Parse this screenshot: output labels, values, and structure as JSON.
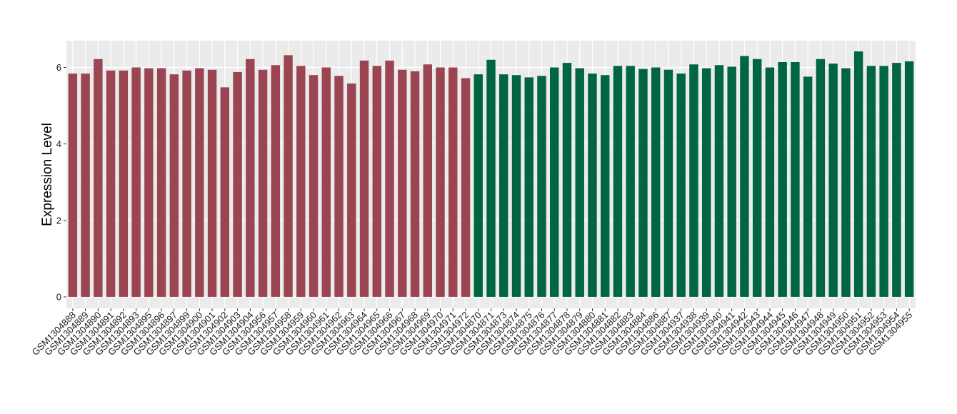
{
  "chart_data": {
    "type": "bar",
    "ylabel": "Expression Level",
    "xlabel": "",
    "ylim": [
      -0.3,
      6.7
    ],
    "yticks": [
      0,
      2,
      4,
      6
    ],
    "grid": true,
    "legend": "none",
    "colors": {
      "group1": "#9b4452",
      "group2": "#006641",
      "panel": "#ebebeb",
      "grid": "#ffffff"
    },
    "categories": [
      "GSM1304888",
      "GSM1304889",
      "GSM1304890",
      "GSM1304891",
      "GSM1304892",
      "GSM1304893",
      "GSM1304895",
      "GSM1304896",
      "GSM1304897",
      "GSM1304899",
      "GSM1304900",
      "GSM1304901",
      "GSM1304902",
      "GSM1304903",
      "GSM1304904",
      "GSM1304956",
      "GSM1304957",
      "GSM1304958",
      "GSM1304959",
      "GSM1304960",
      "GSM1304961",
      "GSM1304962",
      "GSM1304963",
      "GSM1304964",
      "GSM1304965",
      "GSM1304966",
      "GSM1304967",
      "GSM1304968",
      "GSM1304969",
      "GSM1304970",
      "GSM1304971",
      "GSM1304972",
      "GSM1304870",
      "GSM1304871",
      "GSM1304873",
      "GSM1304874",
      "GSM1304875",
      "GSM1304876",
      "GSM1304877",
      "GSM1304878",
      "GSM1304879",
      "GSM1304880",
      "GSM1304881",
      "GSM1304882",
      "GSM1304883",
      "GSM1304884",
      "GSM1304886",
      "GSM1304887",
      "GSM1304937",
      "GSM1304938",
      "GSM1304939",
      "GSM1304940",
      "GSM1304941",
      "GSM1304942",
      "GSM1304943",
      "GSM1304944",
      "GSM1304945",
      "GSM1304946",
      "GSM1304947",
      "GSM1304948",
      "GSM1304949",
      "GSM1304950",
      "GSM1304951",
      "GSM1304952",
      "GSM1304953",
      "GSM1304954",
      "GSM1304955"
    ],
    "values": [
      5.84,
      5.84,
      6.22,
      5.92,
      5.92,
      6.0,
      5.98,
      5.98,
      5.82,
      5.92,
      5.98,
      5.94,
      5.48,
      5.88,
      6.22,
      5.94,
      6.06,
      6.32,
      6.04,
      5.8,
      6.0,
      5.78,
      5.58,
      6.18,
      6.04,
      6.18,
      5.94,
      5.9,
      6.08,
      6.0,
      6.0,
      5.72,
      5.82,
      6.2,
      5.82,
      5.8,
      5.74,
      5.78,
      6.0,
      6.12,
      5.98,
      5.84,
      5.8,
      6.04,
      6.04,
      5.96,
      6.0,
      5.94,
      5.84,
      6.08,
      5.98,
      6.06,
      6.02,
      6.3,
      6.22,
      6.0,
      6.14,
      6.14,
      5.76,
      6.22,
      6.1,
      5.98,
      6.42,
      6.04,
      6.04,
      6.12,
      6.16
    ],
    "groups": [
      1,
      1,
      1,
      1,
      1,
      1,
      1,
      1,
      1,
      1,
      1,
      1,
      1,
      1,
      1,
      1,
      1,
      1,
      1,
      1,
      1,
      1,
      1,
      1,
      1,
      1,
      1,
      1,
      1,
      1,
      1,
      1,
      2,
      2,
      2,
      2,
      2,
      2,
      2,
      2,
      2,
      2,
      2,
      2,
      2,
      2,
      2,
      2,
      2,
      2,
      2,
      2,
      2,
      2,
      2,
      2,
      2,
      2,
      2,
      2,
      2,
      2,
      2,
      2,
      2,
      2,
      2
    ]
  }
}
